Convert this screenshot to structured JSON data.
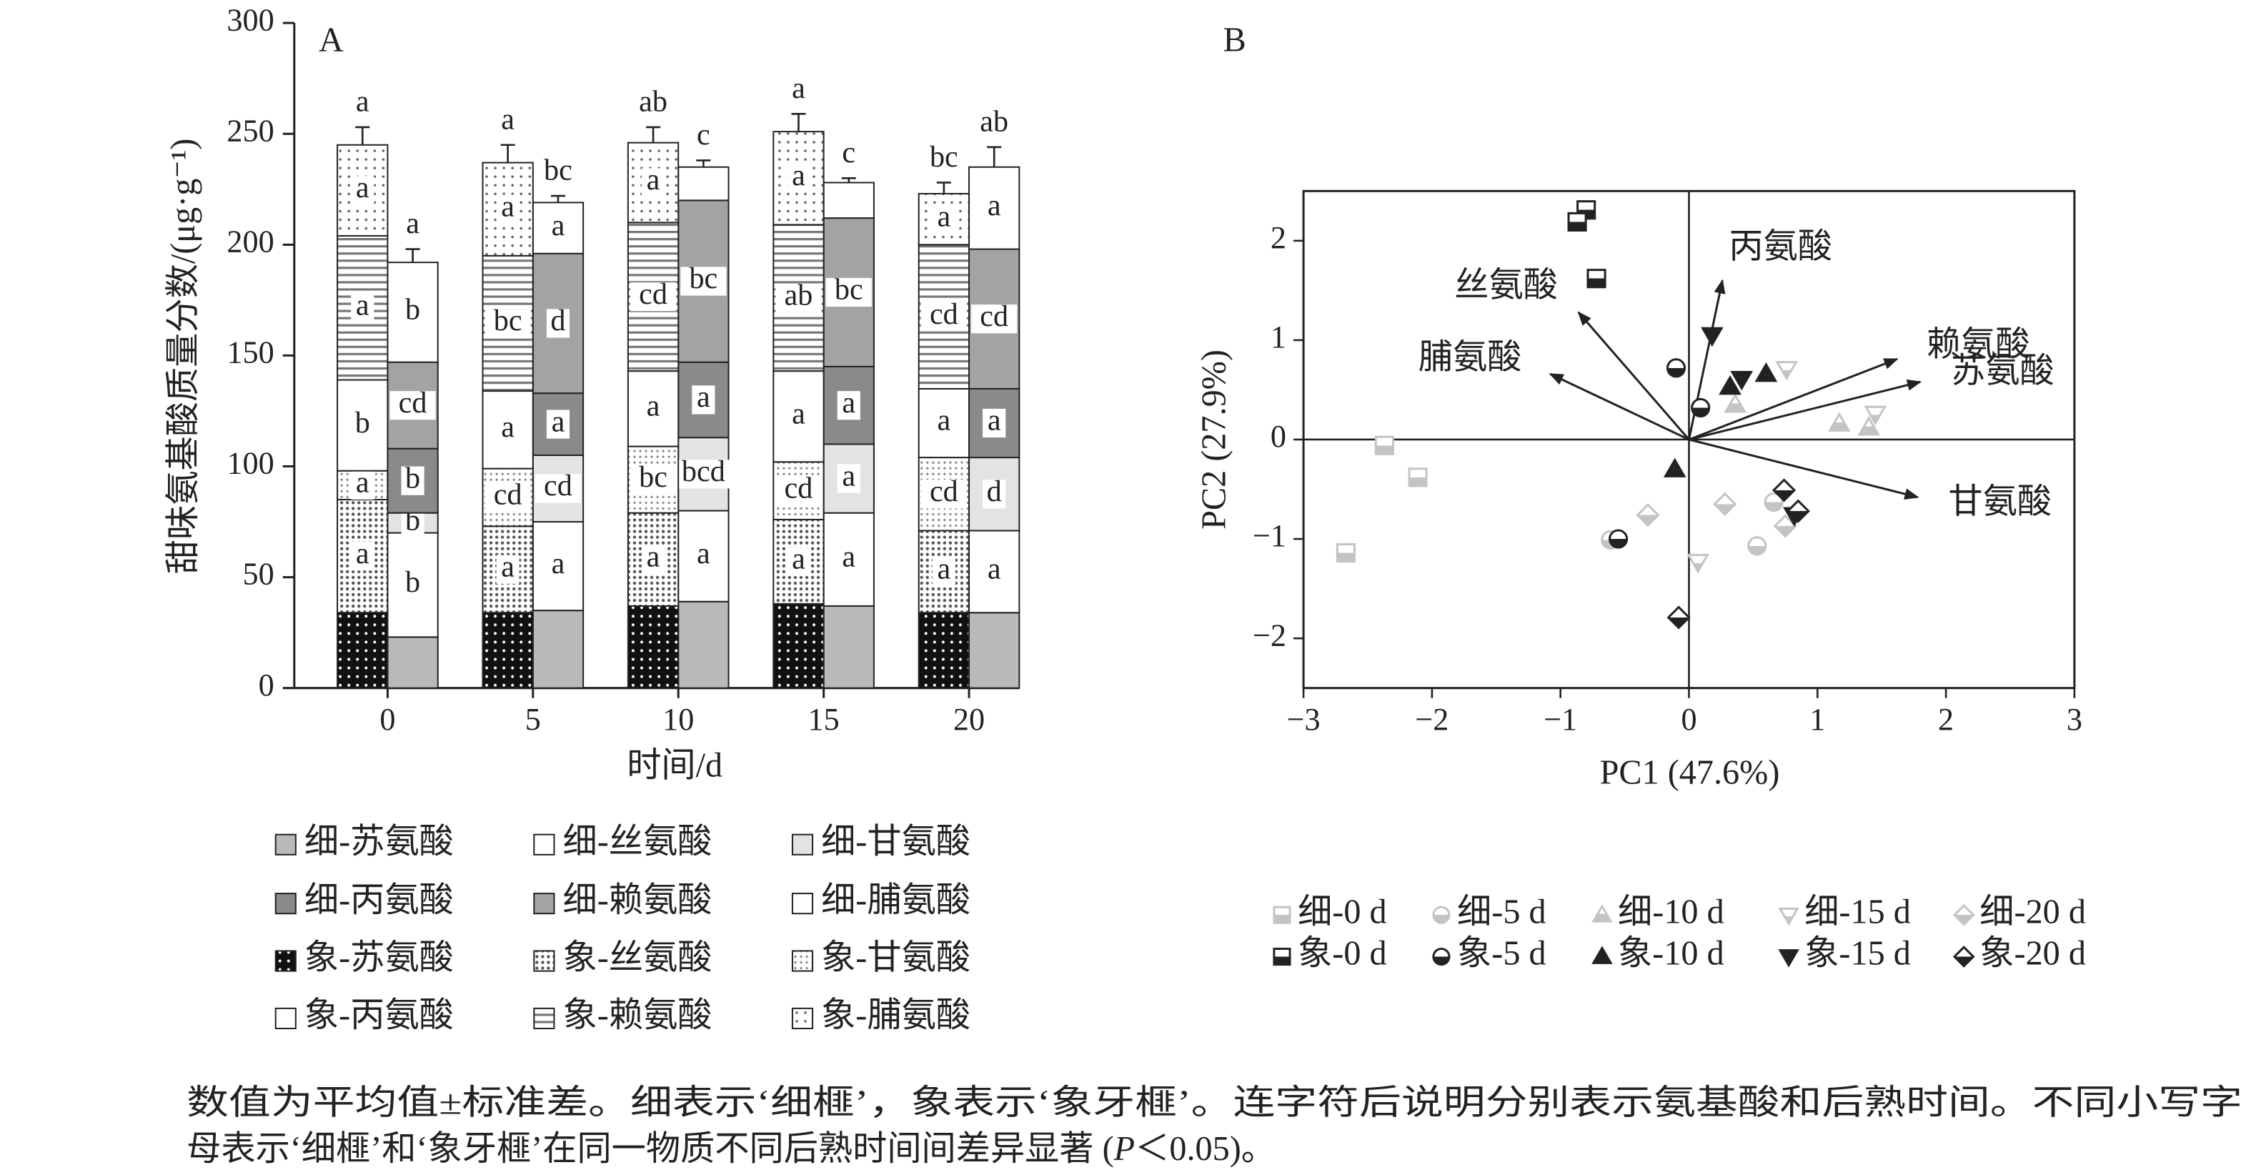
{
  "chart_data": [
    {
      "type": "bar",
      "title": "A",
      "ylabel": "甜味氨基酸质量分数/(μg·g⁻¹)",
      "xlabel": "时间/d",
      "categories": [
        "0",
        "5",
        "10",
        "15",
        "20"
      ],
      "ylim": [
        0,
        300
      ],
      "yticks": [
        0,
        50,
        100,
        150,
        200,
        250,
        300
      ],
      "series": [
        {
          "name": "细-苏氨酸",
          "color": "#b9b9b9",
          "values": [
            23,
            35,
            39,
            37,
            34
          ]
        },
        {
          "name": "细-丝氨酸",
          "color": "#ffffff",
          "values": [
            47,
            40,
            41,
            42,
            37
          ],
          "letters": [
            "b",
            "a",
            "a",
            "a",
            "a"
          ]
        },
        {
          "name": "细-甘氨酸",
          "color": "#e3e3e3",
          "values": [
            9,
            30,
            33,
            31,
            33
          ],
          "letters": [
            "b",
            "cd",
            "bcd",
            "a",
            "d"
          ]
        },
        {
          "name": "细-丙氨酸",
          "color": "#8a8a8a",
          "values": [
            29,
            28,
            34,
            35,
            31
          ],
          "letters": [
            "b",
            "a",
            "a",
            "a",
            "a"
          ]
        },
        {
          "name": "细-赖氨酸",
          "color": "#a3a3a3",
          "values": [
            39,
            63,
            73,
            67,
            63
          ],
          "letters": [
            "cd",
            "d",
            "bc",
            "bc",
            "cd"
          ]
        },
        {
          "name": "细-脯氨酸",
          "color": "#ffffff",
          "values": [
            45,
            23,
            15,
            16,
            37
          ],
          "letters": [
            "b",
            "a",
            null,
            null,
            "a"
          ],
          "errors": [
            6,
            3,
            3,
            2,
            9
          ],
          "total_letters": [
            "a",
            "bc",
            "c",
            "c",
            "ab"
          ]
        },
        {
          "name": "象-苏氨酸",
          "pattern": "dots-dark",
          "values": [
            34,
            34,
            37,
            38,
            34
          ]
        },
        {
          "name": "象-丝氨酸",
          "pattern": "dots",
          "values": [
            51,
            39,
            42,
            38,
            37
          ],
          "letters": [
            "a",
            "a",
            "a",
            "a",
            "a"
          ]
        },
        {
          "name": "象-甘氨酸",
          "pattern": "dots-fine",
          "values": [
            13,
            26,
            30,
            26,
            33
          ],
          "letters": [
            "a",
            "cd",
            "bc",
            "cd",
            "cd"
          ]
        },
        {
          "name": "象-丙氨酸",
          "color": "#ffffff",
          "values": [
            41,
            35,
            34,
            41,
            31
          ],
          "letters": [
            "b",
            "a",
            "a",
            "a",
            "a"
          ]
        },
        {
          "name": "象-赖氨酸",
          "pattern": "stripes",
          "values": [
            65,
            61,
            67,
            66,
            65
          ],
          "letters": [
            "a",
            "bc",
            "cd",
            "ab",
            "cd"
          ]
        },
        {
          "name": "象-脯氨酸",
          "pattern": "dots-sparse",
          "values": [
            41,
            42,
            36,
            42,
            23
          ],
          "letters": [
            "a",
            "a",
            "a",
            "a",
            "a"
          ],
          "errors": [
            8,
            8,
            7,
            8,
            5
          ],
          "total_letters": [
            "a",
            "a",
            "ab",
            "a",
            "bc"
          ]
        }
      ]
    },
    {
      "type": "scatter",
      "title": "B",
      "xlabel": "PC1 (47.6%)",
      "ylabel": "PC2 (27.9%)",
      "xlim": [
        -3,
        3
      ],
      "ylim": [
        -2.5,
        2.5
      ],
      "xticks": [
        {
          "value": -3,
          "label": "−3"
        },
        {
          "value": -2,
          "label": "−2"
        },
        {
          "value": -1,
          "label": "−1"
        },
        0,
        1,
        2,
        3
      ],
      "yticks": [
        {
          "value": -2,
          "label": "−2"
        },
        {
          "value": -1,
          "label": "−1"
        },
        0,
        1,
        2
      ],
      "series": [
        {
          "name": "细-0 d",
          "color": "#c4c4c4",
          "marker": "square",
          "fill": "half",
          "x": [
            -2.67,
            -2.37,
            -2.11
          ],
          "y": [
            -1.14,
            -0.06,
            -0.38
          ]
        },
        {
          "name": "细-5 d",
          "color": "#c4c4c4",
          "marker": "circle",
          "fill": "half",
          "x": [
            -0.61,
            0.66,
            0.53
          ],
          "y": [
            -1.01,
            -0.63,
            -1.07
          ]
        },
        {
          "name": "细-10 d",
          "color": "#c4c4c4",
          "marker": "triangle-up",
          "fill": "half",
          "x": [
            1.17,
            1.4,
            0.36
          ],
          "y": [
            0.16,
            0.12,
            0.35
          ]
        },
        {
          "name": "细-15 d",
          "color": "#c4c4c4",
          "marker": "triangle-down",
          "fill": "half",
          "x": [
            0.76,
            1.45,
            0.07
          ],
          "y": [
            0.71,
            0.26,
            -1.23
          ]
        },
        {
          "name": "细-20 d",
          "color": "#c4c4c4",
          "marker": "diamond",
          "fill": "half",
          "x": [
            -0.32,
            0.28,
            0.75
          ],
          "y": [
            -0.76,
            -0.65,
            -0.87
          ]
        },
        {
          "name": "象-0 d",
          "color": "#222222",
          "marker": "square",
          "fill": "half",
          "x": [
            -0.8,
            -0.87,
            -0.72
          ],
          "y": [
            2.31,
            2.19,
            1.62
          ]
        },
        {
          "name": "象-5 d",
          "color": "#222222",
          "marker": "circle",
          "fill": "half",
          "x": [
            -0.1,
            0.09,
            -0.55
          ],
          "y": [
            0.72,
            0.32,
            -1.0
          ]
        },
        {
          "name": "象-10 d",
          "color": "#222222",
          "marker": "triangle-up",
          "fill": "solid",
          "x": [
            -0.11,
            0.32,
            0.6
          ],
          "y": [
            -0.3,
            0.53,
            0.66
          ]
        },
        {
          "name": "象-15 d",
          "color": "#222222",
          "marker": "triangle-down",
          "fill": "solid",
          "x": [
            0.18,
            0.41,
            0.82
          ],
          "y": [
            1.05,
            0.61,
            -0.76
          ]
        },
        {
          "name": "象-20 d",
          "color": "#222222",
          "marker": "diamond",
          "fill": "half",
          "x": [
            -0.08,
            0.74,
            0.85
          ],
          "y": [
            -1.79,
            -0.51,
            -0.72
          ]
        }
      ],
      "loadings": [
        {
          "name": "丙氨酸",
          "x": 0.26,
          "y": 1.6
        },
        {
          "name": "丝氨酸",
          "x": -0.86,
          "y": 1.28
        },
        {
          "name": "赖氨酸",
          "x": 1.62,
          "y": 0.81
        },
        {
          "name": "苏氨酸",
          "x": 1.8,
          "y": 0.58
        },
        {
          "name": "脯氨酸",
          "x": -1.08,
          "y": 0.66
        },
        {
          "name": "甘氨酸",
          "x": 1.78,
          "y": -0.58
        }
      ]
    }
  ],
  "caption": [
    "数值为平均值±标准差。细表示‘细榧’，象表示‘象牙榧’。连字符后说明分别表示氨基酸和后熟时间。不同小写字",
    "母表示‘细榧’和‘象牙榧’在同一物质不同后熟时间间差异显著 (",
    "P",
    "＜0.05)。"
  ]
}
